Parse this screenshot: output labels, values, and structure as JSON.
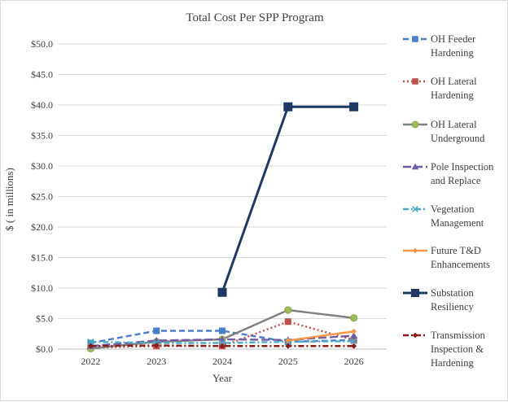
{
  "chart_data": {
    "type": "line",
    "title": "Total Cost Per SPP Program",
    "xlabel": "Year",
    "ylabel": "$ ( in millions)",
    "x": [
      "2022",
      "2023",
      "2024",
      "2025",
      "2026"
    ],
    "ylim": [
      0,
      50
    ],
    "ytick_labels": [
      "$0.0",
      "$5.0",
      "$10.0",
      "$15.0",
      "$20.0",
      "$25.0",
      "$30.0",
      "$35.0",
      "$40.0",
      "$45.0",
      "$50.0"
    ],
    "grid": "horizontal",
    "legend_position": "right",
    "series": [
      {
        "name": "OH Feeder Hardening",
        "legend_lines": [
          "OH Feeder",
          "Hardening"
        ],
        "color": "#4a7ec9",
        "dash": "dashed",
        "marker": "square",
        "values": [
          1.0,
          3.0,
          3.0,
          1.2,
          1.5
        ]
      },
      {
        "name": "OH Lateral Hardening",
        "legend_lines": [
          "OH Lateral",
          "Hardening"
        ],
        "color": "#c0504d",
        "dash": "dotted",
        "marker": "square",
        "values": [
          0.2,
          0.5,
          0.5,
          4.5,
          1.5
        ]
      },
      {
        "name": "OH Lateral Underground",
        "legend_lines": [
          "OH Lateral",
          "Underground"
        ],
        "color": "#7f7f7f",
        "dash": "solid",
        "marker": "circle",
        "values": [
          0.1,
          1.2,
          1.6,
          6.4,
          5.1
        ]
      },
      {
        "name": "Pole Inspection and Replace",
        "legend_lines": [
          "Pole Inspection",
          "and Replace"
        ],
        "color": "#7159a3",
        "dash": "longdash",
        "marker": "triangle",
        "values": [
          0.5,
          1.4,
          1.6,
          1.5,
          2.2
        ]
      },
      {
        "name": "Vegetation Management",
        "legend_lines": [
          "Vegetation",
          "Management"
        ],
        "color": "#4bacc6",
        "dash": "dashdot",
        "marker": "x",
        "values": [
          1.2,
          1.0,
          1.0,
          1.2,
          1.3
        ]
      },
      {
        "name": "Future T&D Enhancements",
        "legend_lines": [
          "Future T&D",
          "Enhancements"
        ],
        "color": "#f79646",
        "dash": "solid",
        "marker": "diamond",
        "values": [
          null,
          null,
          null,
          1.4,
          2.9
        ]
      },
      {
        "name": "Substation Resiliency",
        "legend_lines": [
          "Substation",
          "Resiliency"
        ],
        "color": "#1f3864",
        "dash": "solid",
        "marker": "square",
        "values": [
          null,
          null,
          9.3,
          39.7,
          39.7
        ]
      },
      {
        "name": "Transmission Inspection & Hardening",
        "legend_lines": [
          "Transmission",
          "Inspection &",
          "Hardening"
        ],
        "color": "#8b1a1a",
        "dash": "dashdot",
        "marker": "diamond",
        "values": [
          0.5,
          0.6,
          0.5,
          0.5,
          0.5
        ]
      }
    ]
  }
}
